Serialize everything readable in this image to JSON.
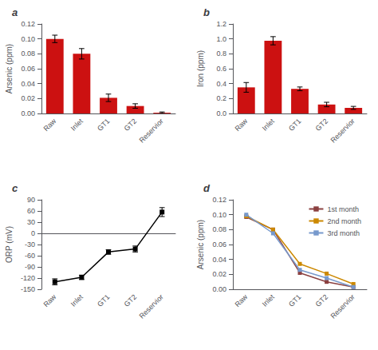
{
  "chart_data": [
    {
      "type": "bar",
      "title": "a",
      "categories": [
        "Raw",
        "Inlet",
        "GT1",
        "GT2",
        "Reservior"
      ],
      "values": [
        0.1,
        0.08,
        0.021,
        0.01,
        0.001
      ],
      "errors": [
        0.005,
        0.007,
        0.005,
        0.003,
        0.001
      ],
      "color": "#cc1111",
      "ylabel": "Arsenic (ppm)",
      "ylim": [
        0,
        0.12
      ],
      "yticks": [
        {
          "value": 0,
          "label": "0.00"
        },
        0.02,
        0.04,
        0.06,
        0.08,
        {
          "value": 0.1,
          "label": "0.10"
        },
        0.12
      ],
      "grid": false
    },
    {
      "type": "bar",
      "title": "b",
      "categories": [
        "Raw",
        "Inlet",
        "GT1",
        "GT2",
        "Reservior"
      ],
      "values": [
        0.35,
        0.975,
        0.33,
        0.12,
        0.075
      ],
      "errors": [
        0.065,
        0.055,
        0.025,
        0.03,
        0.02
      ],
      "color": "#cc1111",
      "ylabel": "Iron (ppm)",
      "ylim": [
        0,
        1.2
      ],
      "yticks": [
        {
          "value": 0,
          "label": "0.0"
        },
        0.2,
        0.4,
        0.6,
        0.8,
        {
          "value": 1,
          "label": "1.0"
        },
        1.2
      ],
      "grid": false
    },
    {
      "type": "line",
      "title": "c",
      "categories": [
        "Raw",
        "Inlet",
        "GT1",
        "GT2",
        "Reservior"
      ],
      "values": [
        -130,
        -118,
        -50,
        -42,
        57
      ],
      "errors": [
        8,
        6,
        6,
        8,
        12
      ],
      "color": "black",
      "marker": "square",
      "ylabel": "ORP (mV)",
      "ylim": [
        -150,
        90
      ],
      "yticks": [
        -150,
        -120,
        -90,
        -60,
        -30,
        0,
        30,
        60,
        90
      ],
      "grid": false
    },
    {
      "type": "line",
      "title": "d",
      "categories": [
        "Raw",
        "Inlet",
        "GT1",
        "GT2",
        "Reservior"
      ],
      "series": [
        {
          "name": "1st month",
          "color": "#8B4040",
          "marker": "square",
          "values": [
            0.097,
            0.08,
            0.022,
            0.01,
            0.003
          ]
        },
        {
          "name": "2nd month",
          "color": "#cc8800",
          "marker": "square",
          "values": [
            0.098,
            0.08,
            0.034,
            0.021,
            0.007
          ]
        },
        {
          "name": "3rd month",
          "color": "#7799cc",
          "marker": "square",
          "values": [
            0.1,
            0.075,
            0.026,
            0.015,
            0.003
          ]
        }
      ],
      "ylabel": "Arsenic (ppm)",
      "ylim": [
        0,
        0.12
      ],
      "yticks": [
        {
          "value": 0,
          "label": "0.00"
        },
        0.02,
        0.04,
        0.06,
        0.08,
        {
          "value": 0.1,
          "label": "0.10"
        },
        0.12
      ],
      "legend": "upper right",
      "grid": false
    }
  ]
}
